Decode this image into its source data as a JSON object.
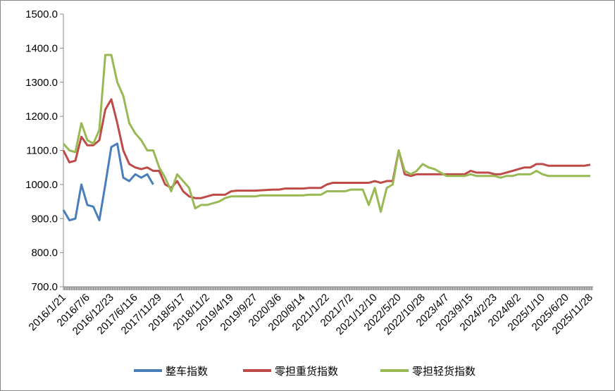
{
  "chart_data": {
    "type": "line",
    "categories": [
      "2016/1/21",
      null,
      null,
      null,
      "2016/7/6",
      null,
      null,
      null,
      "2016/12/23",
      null,
      null,
      null,
      "2017/6/116",
      null,
      null,
      null,
      "2017/11/29",
      null,
      null,
      null,
      "2018/5/17",
      null,
      null,
      null,
      "2018/11/2",
      null,
      null,
      null,
      "2019/4/19",
      null,
      null,
      null,
      "2019/9/27",
      null,
      null,
      null,
      "2020/3/6",
      null,
      null,
      null,
      "2020/8/14",
      null,
      null,
      null,
      "2021/1/22",
      null,
      null,
      null,
      "2021/7/2",
      null,
      null,
      null,
      "2021/12/10",
      null,
      null,
      null,
      "2022/5/20",
      null,
      null,
      null,
      "2022/10/28",
      null,
      null,
      null,
      "2023/4/7",
      null,
      null,
      null,
      "2023/9/15",
      null,
      null,
      null,
      "2024/2/23",
      null,
      null,
      null,
      "2024/8/2",
      null,
      null,
      null,
      "2025/1/10",
      null,
      null,
      null,
      "2025/6/20",
      null,
      null,
      null,
      "2025/11/28"
    ],
    "series": [
      {
        "name": "整车指数",
        "color": "#4a7ebb",
        "values": [
          925,
          895,
          900,
          1000,
          940,
          935,
          895,
          1000,
          1110,
          1120,
          1020,
          1010,
          1030,
          1020,
          1030,
          1000,
          null,
          null,
          null,
          null,
          null,
          null,
          null,
          null,
          null,
          null,
          null,
          null,
          null,
          null,
          null,
          null,
          null,
          null,
          null,
          null,
          null,
          null,
          null,
          null,
          null,
          null,
          null,
          null,
          null,
          null,
          null,
          null,
          null,
          null,
          null,
          null,
          null,
          null,
          null,
          null,
          null,
          null,
          null,
          null,
          null,
          null,
          null,
          null,
          null,
          null,
          null,
          null,
          null,
          null,
          null,
          null,
          null,
          null,
          null,
          null,
          null,
          null,
          null,
          null,
          null,
          null,
          null,
          null,
          null,
          null,
          null,
          null,
          null
        ]
      },
      {
        "name": "零担重货指数",
        "color": "#be4b48",
        "values": [
          1100,
          1065,
          1070,
          1140,
          1115,
          1115,
          1130,
          1220,
          1250,
          1180,
          1100,
          1060,
          1050,
          1045,
          1050,
          1040,
          1040,
          1000,
          990,
          1010,
          980,
          965,
          960,
          960,
          965,
          970,
          970,
          970,
          980,
          982,
          982,
          982,
          982,
          983,
          984,
          985,
          985,
          988,
          988,
          988,
          988,
          990,
          990,
          990,
          1000,
          1005,
          1005,
          1005,
          1005,
          1005,
          1005,
          1005,
          1010,
          1005,
          1010,
          1010,
          1100,
          1030,
          1025,
          1030,
          1030,
          1030,
          1030,
          1030,
          1030,
          1030,
          1030,
          1030,
          1040,
          1035,
          1035,
          1035,
          1030,
          1030,
          1035,
          1040,
          1045,
          1050,
          1050,
          1060,
          1060,
          1055,
          1055,
          1055,
          1055,
          1055,
          1055,
          1055,
          1058
        ]
      },
      {
        "name": "零担轻货指数",
        "color": "#98b954",
        "values": [
          1120,
          1100,
          1095,
          1180,
          1130,
          1120,
          1160,
          1380,
          1380,
          1300,
          1260,
          1180,
          1150,
          1130,
          1100,
          1100,
          1050,
          1020,
          980,
          1030,
          1010,
          990,
          930,
          940,
          940,
          945,
          950,
          960,
          965,
          965,
          965,
          965,
          965,
          968,
          968,
          968,
          968,
          968,
          968,
          968,
          968,
          970,
          970,
          970,
          980,
          980,
          980,
          980,
          985,
          985,
          985,
          940,
          990,
          920,
          990,
          1000,
          1100,
          1040,
          1030,
          1040,
          1060,
          1050,
          1045,
          1035,
          1025,
          1025,
          1025,
          1025,
          1030,
          1025,
          1025,
          1025,
          1025,
          1020,
          1025,
          1025,
          1030,
          1030,
          1030,
          1040,
          1030,
          1025,
          1025,
          1025,
          1025,
          1025,
          1025,
          1025,
          1025
        ]
      }
    ],
    "ylim": [
      700,
      1500
    ],
    "yticks": [
      {
        "value": 700,
        "label": "700.0"
      },
      {
        "value": 800,
        "label": "800.0"
      },
      {
        "value": 900,
        "label": "900.0"
      },
      {
        "value": 1000,
        "label": "1000.0"
      },
      {
        "value": 1100,
        "label": "1100.0"
      },
      {
        "value": 1200,
        "label": "1200.0"
      },
      {
        "value": 1300,
        "label": "1300.0"
      },
      {
        "value": 1400,
        "label": "1400.0"
      },
      {
        "value": 1500,
        "label": "1500.0"
      }
    ],
    "grid": false,
    "legend": "bottom"
  }
}
